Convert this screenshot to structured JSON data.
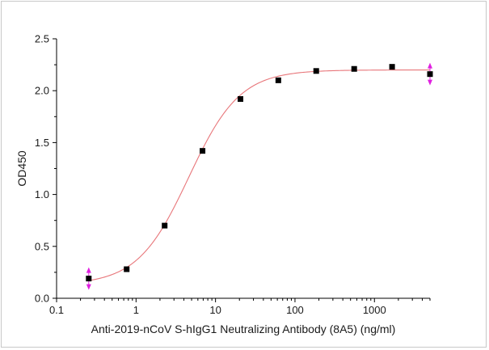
{
  "chart_data": {
    "type": "scatter",
    "title": "",
    "xlabel": "Anti-2019-nCoV S-hIgG1 Neutralizing Antibody (8A5) (ng/ml)",
    "ylabel": "OD450",
    "xscale": "log",
    "xlim": [
      0.1,
      5000
    ],
    "ylim": [
      0.0,
      2.5
    ],
    "x_ticks": [
      {
        "value": 0.1,
        "label": "0.1"
      },
      {
        "value": 1,
        "label": "1"
      },
      {
        "value": 10,
        "label": "10"
      },
      {
        "value": 100,
        "label": "100"
      },
      {
        "value": 1000,
        "label": "1000"
      }
    ],
    "y_ticks": [
      {
        "value": 0.0,
        "label": "0.0"
      },
      {
        "value": 0.5,
        "label": "0.5"
      },
      {
        "value": 1.0,
        "label": "1.0"
      },
      {
        "value": 1.5,
        "label": "1.5"
      },
      {
        "value": 2.0,
        "label": "2.0"
      },
      {
        "value": 2.5,
        "label": "2.5"
      }
    ],
    "grid": false,
    "legend": "none",
    "series": [
      {
        "x": [
          0.254,
          0.762,
          2.29,
          6.86,
          20.6,
          61.7,
          185,
          556,
          1667,
          5000
        ],
        "y": [
          0.19,
          0.28,
          0.7,
          1.42,
          1.92,
          2.1,
          2.19,
          2.21,
          2.23,
          2.16
        ],
        "marker": "square",
        "color": "#000000"
      }
    ],
    "fit_curve": {
      "model": "4PL",
      "bottom": 0.13,
      "top": 2.2,
      "ec50": 4.6,
      "hill": 1.35,
      "color": "#e8767a"
    },
    "range_markers": {
      "color": "#e020e0",
      "x": [
        0.254,
        5000
      ]
    }
  }
}
